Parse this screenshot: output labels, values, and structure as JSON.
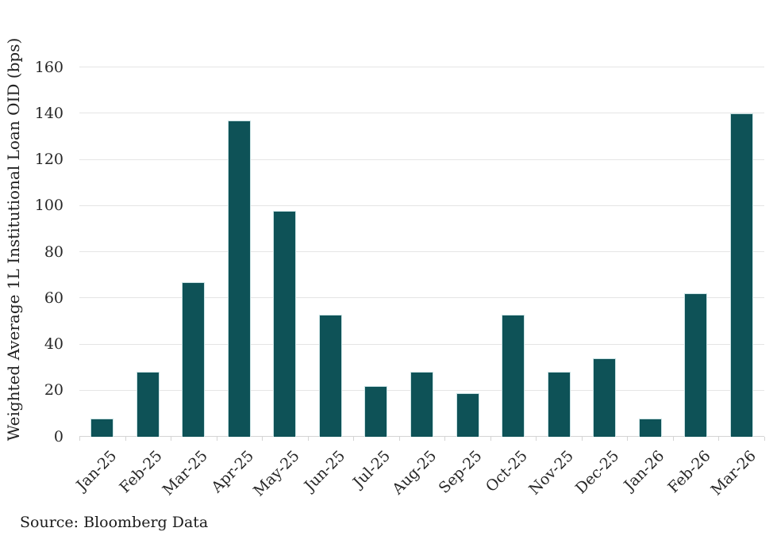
{
  "chart_data": {
    "type": "bar",
    "title": "",
    "categories": [
      "Jan-25",
      "Feb-25",
      "Mar-25",
      "Apr-25",
      "May-25",
      "Jun-25",
      "Jul-25",
      "Aug-25",
      "Sep-25",
      "Oct-25",
      "Nov-25",
      "Dec-25",
      "Jan-26",
      "Feb-26",
      "Mar-26"
    ],
    "values": [
      8,
      28,
      67,
      137,
      98,
      53,
      22,
      28,
      19,
      53,
      28,
      34,
      8,
      62,
      140
    ],
    "xlabel": "",
    "ylabel": "Weighted Average 1L Institutional Loan OID (bps)",
    "ylim": [
      0,
      160
    ],
    "yticks": [
      0,
      20,
      40,
      60,
      80,
      100,
      120,
      140,
      160
    ],
    "grid": true,
    "legend_position": "none",
    "bar_color": "#0e5257"
  },
  "source_note": "Source: Bloomberg Data",
  "colors": {
    "bar": "#0e5257",
    "bar_edge": "#c9e2e4",
    "gridline": "#e5e5e5",
    "axis_line": "#d4d4d4",
    "tick_text": "#262626",
    "source_text": "#1b1b1b",
    "background": "#ffffff"
  }
}
